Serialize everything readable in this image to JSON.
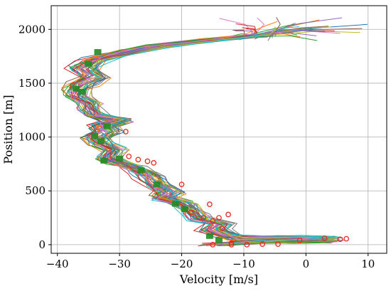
{
  "chart_data": {
    "type": "line",
    "title": "",
    "xlabel": "Velocity [m/s]",
    "ylabel": "Position [m]",
    "xlim": [
      -41,
      13
    ],
    "ylim": [
      -80,
      2220
    ],
    "xticks": [
      -40,
      -30,
      -20,
      -10,
      0,
      10
    ],
    "yticks": [
      0,
      500,
      1000,
      1500,
      2000
    ],
    "grid": true,
    "legend": "none",
    "num_series_drawn": 40,
    "palette": [
      "#1f77b4",
      "#ff7f0e",
      "#2ca02c",
      "#d62728",
      "#9467bd",
      "#8c564b",
      "#e377c2",
      "#7f7f7f",
      "#bcbd22",
      "#17becf"
    ],
    "marker_colors": {
      "start_points": "#228b22",
      "circle_markers": "#e8291c"
    },
    "nominal_trajectory": {
      "x": [
        -15,
        -8,
        -2,
        2,
        4,
        3,
        -1,
        -6,
        -11,
        -13,
        -15,
        -14,
        -17,
        -18,
        -19,
        -20,
        -23,
        -22,
        -24,
        -25,
        -26,
        -28,
        -30,
        -32,
        -31,
        -33,
        -34,
        -32,
        -33,
        -30,
        -34,
        -35,
        -35,
        -37,
        -37,
        -36,
        -34,
        -36,
        -34,
        -30,
        -24,
        -16,
        -8,
        0,
        4
      ],
      "y": [
        0,
        25,
        35,
        45,
        50,
        52,
        55,
        58,
        62,
        90,
        140,
        190,
        240,
        290,
        340,
        390,
        440,
        490,
        560,
        620,
        670,
        720,
        760,
        800,
        880,
        940,
        990,
        1040,
        1100,
        1150,
        1200,
        1260,
        1320,
        1380,
        1440,
        1500,
        1560,
        1640,
        1720,
        1780,
        1850,
        1900,
        1940,
        1970,
        2000
      ]
    },
    "circle_markers": [
      {
        "x": 5.5,
        "y": 50
      },
      {
        "x": 6.5,
        "y": 55
      },
      {
        "x": 3.0,
        "y": 60
      },
      {
        "x": -1.0,
        "y": 40
      },
      {
        "x": -12.0,
        "y": 15
      },
      {
        "x": -7.0,
        "y": 5
      },
      {
        "x": -9.5,
        "y": 0
      },
      {
        "x": -4.5,
        "y": 5
      },
      {
        "x": -13.5,
        "y": 150
      },
      {
        "x": -15.0,
        "y": 220
      },
      {
        "x": -14.0,
        "y": 250
      },
      {
        "x": -12.5,
        "y": 280
      },
      {
        "x": -16.5,
        "y": 250
      },
      {
        "x": -15.5,
        "y": 375
      },
      {
        "x": -18.5,
        "y": 300
      },
      {
        "x": -20.0,
        "y": 560
      },
      {
        "x": -24.5,
        "y": 760
      },
      {
        "x": -25.5,
        "y": 775
      },
      {
        "x": -27.0,
        "y": 790
      },
      {
        "x": -28.5,
        "y": 820
      },
      {
        "x": -29.0,
        "y": 1050
      },
      {
        "x": -15.0,
        "y": 0
      },
      {
        "x": -12.0,
        "y": 0
      }
    ],
    "start_markers": [
      {
        "x": -33.5,
        "y": 1790
      },
      {
        "x": -37.0,
        "y": 1450
      },
      {
        "x": -35.0,
        "y": 1680
      },
      {
        "x": -36.0,
        "y": 1420
      },
      {
        "x": -32.0,
        "y": 1100
      },
      {
        "x": -34.0,
        "y": 1010
      },
      {
        "x": -33.0,
        "y": 960
      },
      {
        "x": -32.5,
        "y": 780
      },
      {
        "x": -30.0,
        "y": 800
      },
      {
        "x": -21.0,
        "y": 380
      },
      {
        "x": -19.5,
        "y": 330
      },
      {
        "x": -15.5,
        "y": 80
      },
      {
        "x": -14.0,
        "y": 40
      },
      {
        "x": -26.5,
        "y": 690
      },
      {
        "x": -24.0,
        "y": 560
      }
    ]
  }
}
